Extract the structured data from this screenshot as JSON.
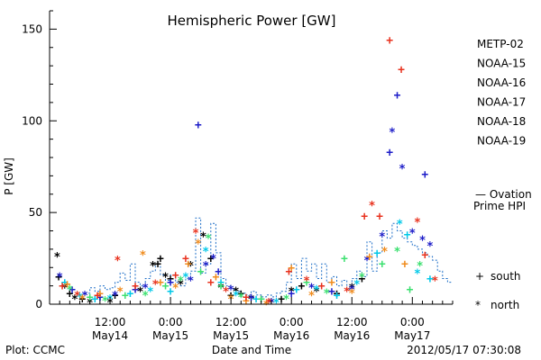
{
  "chart_data": {
    "type": "scatter",
    "title": "Hemispheric Power [GW]",
    "ylabel": "P [GW]",
    "xlabel": "Date and Time",
    "ylim": [
      0,
      160
    ],
    "yticks": [
      0,
      50,
      100,
      150
    ],
    "xlim": [
      0,
      80
    ],
    "xunit": "hours since 2012-05-14 00:00 UT",
    "xticks": [
      {
        "x": 12,
        "line1": "12:00",
        "line2": "May14"
      },
      {
        "x": 24,
        "line1": "0:00",
        "line2": "May15"
      },
      {
        "x": 36,
        "line1": "12:00",
        "line2": "May15"
      },
      {
        "x": 48,
        "line1": "0:00",
        "line2": "May16"
      },
      {
        "x": 60,
        "line1": "12:00",
        "line2": "May16"
      },
      {
        "x": 72,
        "line1": "0:00",
        "line2": "May17"
      }
    ],
    "footer_left": "Plot: CCMC",
    "footer_right": "2012/05/17 07:30:08",
    "marker_key": [
      {
        "symbol": "+",
        "label": "south"
      },
      {
        "symbol": "*",
        "label": "north"
      }
    ],
    "ovation": {
      "label_line1": "— Ovation",
      "label_line2": "Prime HPI",
      "color": "#1f6fc7",
      "steps": [
        {
          "x": 7,
          "y": 6
        },
        {
          "x": 8,
          "y": 9
        },
        {
          "x": 9,
          "y": 7
        },
        {
          "x": 10,
          "y": 10
        },
        {
          "x": 11,
          "y": 8
        },
        {
          "x": 12,
          "y": 9
        },
        {
          "x": 13,
          "y": 12
        },
        {
          "x": 14,
          "y": 17
        },
        {
          "x": 15,
          "y": 13
        },
        {
          "x": 16,
          "y": 22
        },
        {
          "x": 17,
          "y": 12
        },
        {
          "x": 18,
          "y": 10
        },
        {
          "x": 19,
          "y": 14
        },
        {
          "x": 20,
          "y": 18
        },
        {
          "x": 21,
          "y": 22
        },
        {
          "x": 22,
          "y": 16
        },
        {
          "x": 23,
          "y": 13
        },
        {
          "x": 24,
          "y": 16
        },
        {
          "x": 25,
          "y": 12
        },
        {
          "x": 26,
          "y": 10
        },
        {
          "x": 27,
          "y": 14
        },
        {
          "x": 28,
          "y": 18
        },
        {
          "x": 29,
          "y": 47
        },
        {
          "x": 30,
          "y": 17
        },
        {
          "x": 31,
          "y": 22
        },
        {
          "x": 32,
          "y": 44
        },
        {
          "x": 33,
          "y": 28
        },
        {
          "x": 34,
          "y": 14
        },
        {
          "x": 35,
          "y": 10
        },
        {
          "x": 36,
          "y": 8
        },
        {
          "x": 37,
          "y": 7
        },
        {
          "x": 38,
          "y": 6
        },
        {
          "x": 39,
          "y": 5
        },
        {
          "x": 40,
          "y": 7
        },
        {
          "x": 41,
          "y": 5
        },
        {
          "x": 42,
          "y": 4
        },
        {
          "x": 43,
          "y": 5
        },
        {
          "x": 44,
          "y": 4
        },
        {
          "x": 45,
          "y": 6
        },
        {
          "x": 46,
          "y": 7
        },
        {
          "x": 47,
          "y": 12
        },
        {
          "x": 48,
          "y": 22
        },
        {
          "x": 49,
          "y": 14
        },
        {
          "x": 50,
          "y": 25
        },
        {
          "x": 51,
          "y": 18
        },
        {
          "x": 52,
          "y": 22
        },
        {
          "x": 53,
          "y": 14
        },
        {
          "x": 54,
          "y": 22
        },
        {
          "x": 55,
          "y": 12
        },
        {
          "x": 56,
          "y": 15
        },
        {
          "x": 57,
          "y": 10
        },
        {
          "x": 58,
          "y": 13
        },
        {
          "x": 59,
          "y": 8
        },
        {
          "x": 60,
          "y": 14
        },
        {
          "x": 61,
          "y": 18
        },
        {
          "x": 62,
          "y": 15
        },
        {
          "x": 63,
          "y": 34
        },
        {
          "x": 64,
          "y": 18
        },
        {
          "x": 65,
          "y": 28
        },
        {
          "x": 66,
          "y": 40
        },
        {
          "x": 67,
          "y": 36
        },
        {
          "x": 68,
          "y": 44
        },
        {
          "x": 69,
          "y": 40
        },
        {
          "x": 70,
          "y": 36
        },
        {
          "x": 71,
          "y": 34
        },
        {
          "x": 72,
          "y": 32
        },
        {
          "x": 73,
          "y": 30
        },
        {
          "x": 74,
          "y": 28
        },
        {
          "x": 75,
          "y": 26
        },
        {
          "x": 76,
          "y": 24
        },
        {
          "x": 77,
          "y": 18
        },
        {
          "x": 78,
          "y": 14
        },
        {
          "x": 79,
          "y": 12
        }
      ]
    },
    "series": [
      {
        "name": "METP-02",
        "color": "#000000",
        "points": [
          {
            "x": 1.5,
            "y": 27,
            "m": "*"
          },
          {
            "x": 1.8,
            "y": 15,
            "m": "+"
          },
          {
            "x": 3,
            "y": 10,
            "m": "*"
          },
          {
            "x": 4,
            "y": 6,
            "m": "+"
          },
          {
            "x": 5,
            "y": 4,
            "m": "*"
          },
          {
            "x": 6.5,
            "y": 3,
            "m": "+"
          },
          {
            "x": 8,
            "y": 2,
            "m": "*"
          },
          {
            "x": 10,
            "y": 4,
            "m": "+"
          },
          {
            "x": 12,
            "y": 2,
            "m": "*"
          },
          {
            "x": 13,
            "y": 5,
            "m": "+"
          },
          {
            "x": 18,
            "y": 8,
            "m": "*"
          },
          {
            "x": 20.5,
            "y": 22,
            "m": "*"
          },
          {
            "x": 21.5,
            "y": 22,
            "m": "+"
          },
          {
            "x": 22,
            "y": 25,
            "m": "+"
          },
          {
            "x": 23,
            "y": 16,
            "m": "*"
          },
          {
            "x": 24,
            "y": 14,
            "m": "+"
          },
          {
            "x": 26,
            "y": 12,
            "m": "*"
          },
          {
            "x": 28,
            "y": 22,
            "m": "*"
          },
          {
            "x": 30.5,
            "y": 38,
            "m": "*"
          },
          {
            "x": 32,
            "y": 25,
            "m": "+"
          },
          {
            "x": 34,
            "y": 10,
            "m": "*"
          },
          {
            "x": 36,
            "y": 5,
            "m": "+"
          },
          {
            "x": 37,
            "y": 8,
            "m": "*"
          },
          {
            "x": 38,
            "y": 6,
            "m": "+"
          },
          {
            "x": 40,
            "y": 4,
            "m": "*"
          },
          {
            "x": 42,
            "y": 3,
            "m": "+"
          },
          {
            "x": 44,
            "y": 2,
            "m": "*"
          },
          {
            "x": 46,
            "y": 3,
            "m": "+"
          },
          {
            "x": 48,
            "y": 8,
            "m": "*"
          },
          {
            "x": 50,
            "y": 10,
            "m": "+"
          },
          {
            "x": 53,
            "y": 8,
            "m": "*"
          },
          {
            "x": 57,
            "y": 6,
            "m": "+"
          },
          {
            "x": 60,
            "y": 10,
            "m": "*"
          },
          {
            "x": 62,
            "y": 14,
            "m": "+"
          }
        ]
      },
      {
        "name": "NOAA-15",
        "color": "#1c1cc8",
        "points": [
          {
            "x": 2,
            "y": 16,
            "m": "*"
          },
          {
            "x": 4.5,
            "y": 8,
            "m": "+"
          },
          {
            "x": 7,
            "y": 6,
            "m": "*"
          },
          {
            "x": 10,
            "y": 4,
            "m": "+"
          },
          {
            "x": 13,
            "y": 6,
            "m": "*"
          },
          {
            "x": 17,
            "y": 8,
            "m": "+"
          },
          {
            "x": 19,
            "y": 10,
            "m": "*"
          },
          {
            "x": 24,
            "y": 12,
            "m": "+"
          },
          {
            "x": 28,
            "y": 14,
            "m": "*"
          },
          {
            "x": 29.5,
            "y": 98,
            "m": "+"
          },
          {
            "x": 31,
            "y": 22,
            "m": "*"
          },
          {
            "x": 32.5,
            "y": 26,
            "m": "*"
          },
          {
            "x": 33.5,
            "y": 18,
            "m": "+"
          },
          {
            "x": 36,
            "y": 9,
            "m": "*"
          },
          {
            "x": 40,
            "y": 4,
            "m": "+"
          },
          {
            "x": 44,
            "y": 2,
            "m": "*"
          },
          {
            "x": 48,
            "y": 6,
            "m": "+"
          },
          {
            "x": 52,
            "y": 10,
            "m": "*"
          },
          {
            "x": 56,
            "y": 7,
            "m": "+"
          },
          {
            "x": 60,
            "y": 9,
            "m": "*"
          },
          {
            "x": 63,
            "y": 25,
            "m": "*"
          },
          {
            "x": 66,
            "y": 38,
            "m": "*"
          },
          {
            "x": 67.5,
            "y": 83,
            "m": "+"
          },
          {
            "x": 68,
            "y": 95,
            "m": "*"
          },
          {
            "x": 69,
            "y": 114,
            "m": "+"
          },
          {
            "x": 70,
            "y": 75,
            "m": "*"
          },
          {
            "x": 72,
            "y": 40,
            "m": "*"
          },
          {
            "x": 74,
            "y": 36,
            "m": "*"
          },
          {
            "x": 74.5,
            "y": 71,
            "m": "+"
          },
          {
            "x": 75.5,
            "y": 33,
            "m": "*"
          }
        ]
      },
      {
        "name": "NOAA-16",
        "color": "#00c8e8",
        "points": [
          {
            "x": 3,
            "y": 12,
            "m": "+"
          },
          {
            "x": 6,
            "y": 5,
            "m": "*"
          },
          {
            "x": 9,
            "y": 3,
            "m": "+"
          },
          {
            "x": 12,
            "y": 4,
            "m": "*"
          },
          {
            "x": 16,
            "y": 6,
            "m": "+"
          },
          {
            "x": 20,
            "y": 8,
            "m": "*"
          },
          {
            "x": 24,
            "y": 7,
            "m": "+"
          },
          {
            "x": 27,
            "y": 16,
            "m": "*"
          },
          {
            "x": 31,
            "y": 30,
            "m": "*"
          },
          {
            "x": 34,
            "y": 12,
            "m": "+"
          },
          {
            "x": 37,
            "y": 6,
            "m": "*"
          },
          {
            "x": 41,
            "y": 3,
            "m": "+"
          },
          {
            "x": 45,
            "y": 2,
            "m": "*"
          },
          {
            "x": 49,
            "y": 8,
            "m": "+"
          },
          {
            "x": 53,
            "y": 9,
            "m": "*"
          },
          {
            "x": 57,
            "y": 5,
            "m": "+"
          },
          {
            "x": 61,
            "y": 12,
            "m": "*"
          },
          {
            "x": 65,
            "y": 28,
            "m": "+"
          },
          {
            "x": 69.5,
            "y": 45,
            "m": "*"
          },
          {
            "x": 71,
            "y": 38,
            "m": "+"
          },
          {
            "x": 73,
            "y": 18,
            "m": "*"
          },
          {
            "x": 75.5,
            "y": 14,
            "m": "+"
          }
        ]
      },
      {
        "name": "NOAA-17",
        "color": "#3ce070",
        "points": [
          {
            "x": 4,
            "y": 9,
            "m": "*"
          },
          {
            "x": 8,
            "y": 4,
            "m": "+"
          },
          {
            "x": 11,
            "y": 3,
            "m": "*"
          },
          {
            "x": 15,
            "y": 5,
            "m": "+"
          },
          {
            "x": 19,
            "y": 6,
            "m": "*"
          },
          {
            "x": 23,
            "y": 10,
            "m": "+"
          },
          {
            "x": 26,
            "y": 14,
            "m": "*"
          },
          {
            "x": 30,
            "y": 18,
            "m": "+"
          },
          {
            "x": 31.5,
            "y": 37,
            "m": "*"
          },
          {
            "x": 34,
            "y": 10,
            "m": "+"
          },
          {
            "x": 38,
            "y": 5,
            "m": "*"
          },
          {
            "x": 42,
            "y": 3,
            "m": "+"
          },
          {
            "x": 47,
            "y": 4,
            "m": "*"
          },
          {
            "x": 51,
            "y": 12,
            "m": "+"
          },
          {
            "x": 55,
            "y": 7,
            "m": "*"
          },
          {
            "x": 58.5,
            "y": 25,
            "m": "+"
          },
          {
            "x": 62,
            "y": 16,
            "m": "*"
          },
          {
            "x": 66,
            "y": 22,
            "m": "+"
          },
          {
            "x": 69,
            "y": 30,
            "m": "*"
          },
          {
            "x": 71.5,
            "y": 8,
            "m": "+"
          },
          {
            "x": 73.5,
            "y": 22,
            "m": "*"
          }
        ]
      },
      {
        "name": "NOAA-18",
        "color": "#f08c1e",
        "points": [
          {
            "x": 3.5,
            "y": 11,
            "m": "+"
          },
          {
            "x": 6.5,
            "y": 4,
            "m": "*"
          },
          {
            "x": 10,
            "y": 6,
            "m": "+"
          },
          {
            "x": 14,
            "y": 8,
            "m": "*"
          },
          {
            "x": 18.5,
            "y": 28,
            "m": "*"
          },
          {
            "x": 22,
            "y": 12,
            "m": "+"
          },
          {
            "x": 25,
            "y": 10,
            "m": "*"
          },
          {
            "x": 27.5,
            "y": 22,
            "m": "+"
          },
          {
            "x": 29.5,
            "y": 34,
            "m": "*"
          },
          {
            "x": 33,
            "y": 15,
            "m": "+"
          },
          {
            "x": 36,
            "y": 4,
            "m": "*"
          },
          {
            "x": 39,
            "y": 2,
            "m": "+"
          },
          {
            "x": 43,
            "y": 1,
            "m": "*"
          },
          {
            "x": 48,
            "y": 20,
            "m": "+"
          },
          {
            "x": 52,
            "y": 6,
            "m": "*"
          },
          {
            "x": 56,
            "y": 12,
            "m": "+"
          },
          {
            "x": 60,
            "y": 7,
            "m": "*"
          },
          {
            "x": 63.5,
            "y": 26,
            "m": "+"
          },
          {
            "x": 66.5,
            "y": 30,
            "m": "*"
          },
          {
            "x": 70.5,
            "y": 22,
            "m": "+"
          }
        ]
      },
      {
        "name": "NOAA-19",
        "color": "#e8321e",
        "points": [
          {
            "x": 2.5,
            "y": 10,
            "m": "+"
          },
          {
            "x": 5.5,
            "y": 6,
            "m": "*"
          },
          {
            "x": 9.5,
            "y": 5,
            "m": "+"
          },
          {
            "x": 13.5,
            "y": 25,
            "m": "*"
          },
          {
            "x": 17,
            "y": 10,
            "m": "+"
          },
          {
            "x": 21,
            "y": 12,
            "m": "*"
          },
          {
            "x": 25,
            "y": 16,
            "m": "+"
          },
          {
            "x": 27,
            "y": 25,
            "m": "+"
          },
          {
            "x": 29,
            "y": 40,
            "m": "*"
          },
          {
            "x": 32,
            "y": 12,
            "m": "+"
          },
          {
            "x": 35,
            "y": 8,
            "m": "*"
          },
          {
            "x": 39,
            "y": 4,
            "m": "+"
          },
          {
            "x": 43.5,
            "y": 2,
            "m": "*"
          },
          {
            "x": 47.5,
            "y": 18,
            "m": "+"
          },
          {
            "x": 51,
            "y": 14,
            "m": "*"
          },
          {
            "x": 54,
            "y": 10,
            "m": "+"
          },
          {
            "x": 59,
            "y": 8,
            "m": "*"
          },
          {
            "x": 62.5,
            "y": 48,
            "m": "+"
          },
          {
            "x": 64,
            "y": 55,
            "m": "*"
          },
          {
            "x": 65.5,
            "y": 48,
            "m": "+"
          },
          {
            "x": 67.5,
            "y": 144,
            "m": "+"
          },
          {
            "x": 69.8,
            "y": 128,
            "m": "+"
          },
          {
            "x": 73,
            "y": 46,
            "m": "*"
          },
          {
            "x": 74.5,
            "y": 27,
            "m": "+"
          },
          {
            "x": 76.5,
            "y": 14,
            "m": "*"
          }
        ]
      }
    ]
  }
}
